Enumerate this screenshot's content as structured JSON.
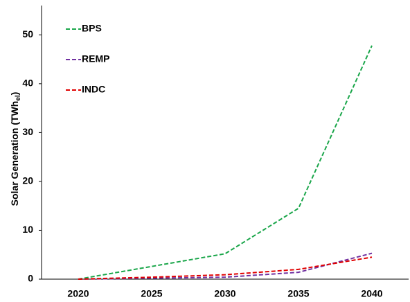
{
  "chart_data": {
    "type": "line",
    "y_label": "Solar Generation (TWh",
    "y_label_sub": "el",
    "y_label_end": ")",
    "categories": [
      "2020",
      "2025",
      "2030",
      "2035",
      "2040"
    ],
    "series": [
      {
        "name": "BPS",
        "color": "#1aa64a",
        "values": [
          0,
          2.6,
          5.2,
          14.5,
          47.8
        ]
      },
      {
        "name": "REMP",
        "color": "#7030a0",
        "values": [
          0,
          0.2,
          0.4,
          1.4,
          5.3
        ]
      },
      {
        "name": "INDC",
        "color": "#e00000",
        "values": [
          0,
          0.4,
          0.9,
          2.0,
          4.5
        ]
      }
    ],
    "ylim": [
      0,
      56
    ],
    "yticks": [
      0,
      10,
      20,
      30,
      40,
      50
    ],
    "grid": false,
    "legend": "top-left"
  }
}
